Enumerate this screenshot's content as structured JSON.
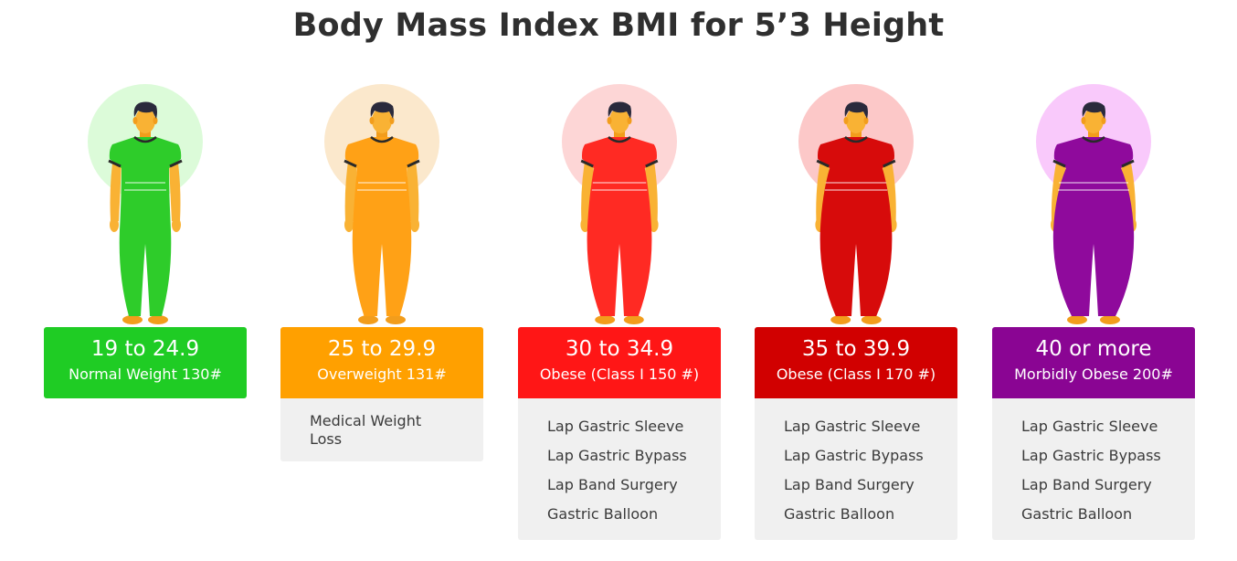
{
  "title": "Body Mass Index BMI for 5’3 Height",
  "categories": [
    {
      "range": "19 to 24.9",
      "label": "Normal Weight 130#",
      "color": "#1fcc24",
      "circle": "#dcfbd9",
      "body": "#2ecc2a",
      "treatments": []
    },
    {
      "range": "25 to 29.9",
      "label": "Overweight 131#",
      "color": "#ffa000",
      "circle": "#fbe8cc",
      "body": "#ffa116",
      "treatments": [
        "Medical Weight Loss"
      ]
    },
    {
      "range": "30 to 34.9",
      "label": "Obese (Class I 150 #)",
      "color": "#ff1616",
      "circle": "#fdd6d6",
      "body": "#ff2a23",
      "treatments": [
        "Lap Gastric Sleeve",
        "Lap Gastric Bypass",
        "Lap Band Surgery",
        "Gastric Balloon"
      ]
    },
    {
      "range": "35 to 39.9",
      "label": "Obese (Class I 170 #)",
      "color": "#d10000",
      "circle": "#fcc8c8",
      "body": "#d70b0b",
      "treatments": [
        "Lap Gastric Sleeve",
        "Lap Gastric Bypass",
        "Lap Band Surgery",
        "Gastric Balloon"
      ]
    },
    {
      "range": "40 or more",
      "label": "Morbidly Obese 200#",
      "color": "#8a0593",
      "circle": "#f9c9fb",
      "body": "#8f0a9c",
      "treatments": [
        "Lap Gastric Sleeve",
        "Lap Gastric Bypass",
        "Lap Band Surgery",
        "Gastric Balloon"
      ]
    }
  ]
}
